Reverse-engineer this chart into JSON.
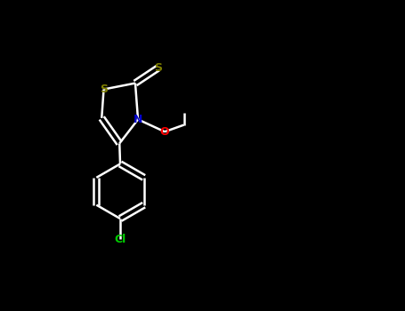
{
  "background_color": "#000000",
  "bond_color": "#ffffff",
  "S_color": "#808000",
  "N_color": "#0000cd",
  "O_color": "#ff0000",
  "Cl_color": "#00cc00",
  "line_width": 1.8,
  "figsize": [
    4.55,
    3.5
  ],
  "dpi": 100,
  "xlim": [
    0,
    455
  ],
  "ylim": [
    0,
    350
  ]
}
